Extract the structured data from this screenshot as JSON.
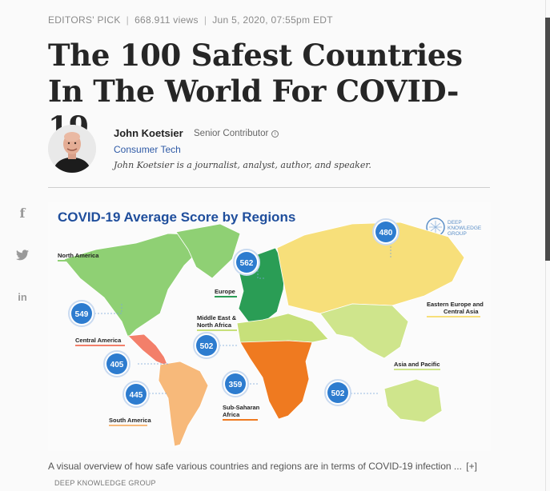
{
  "meta": {
    "label": "EDITORS' PICK",
    "views": "668.911 views",
    "date": "Jun 5, 2020, 07:55pm EDT"
  },
  "article": {
    "title": "The 100 Safest Countries In The World For COVID-19"
  },
  "author": {
    "name": "John Koetsier",
    "role": "Senior Contributor",
    "channel": "Consumer Tech",
    "bio": "John Koetsier is a journalist, analyst, author, and speaker."
  },
  "share": {
    "facebook_icon": "facebook-icon",
    "twitter_icon": "twitter-icon",
    "linkedin_icon": "linkedin-icon"
  },
  "figure": {
    "title": "COVID-19 Average Score by Regions",
    "logo_text_1": "DEEP",
    "logo_text_2": "KNOWLEDGE",
    "logo_text_3": "GROUP",
    "colors": {
      "title": "#1f4e9c",
      "north_america": "#8fd074",
      "europe": "#2a9d55",
      "eastern_europe": "#f7df7a",
      "asia_pacific": "#cfe58c",
      "central_america": "#f37f6a",
      "south_america": "#f7b97a",
      "mena": "#c7e07a",
      "sub_saharan": "#ef7a20",
      "badge": "#2d7ccf"
    }
  },
  "chart_data": {
    "type": "map",
    "title": "COVID-19 Average Score by Regions",
    "categories": [
      "North America",
      "Europe",
      "Eastern Europe and Central Asia",
      "Middle East & North Africa",
      "Central America",
      "South America",
      "Sub-Saharan Africa",
      "Asia and Pacific"
    ],
    "values": [
      549,
      562,
      480,
      502,
      405,
      445,
      359,
      502
    ]
  },
  "regions": {
    "north_america": {
      "label": "North America",
      "score": "549"
    },
    "europe": {
      "label": "Europe",
      "score": "562"
    },
    "eastern_europe_1": {
      "label": "Eastern Europe and"
    },
    "eastern_europe_2": {
      "label": "Central Asia",
      "score": "480"
    },
    "mena_1": {
      "label": "Middle East &"
    },
    "mena_2": {
      "label": "North Africa",
      "score": "502"
    },
    "central_america": {
      "label": "Central America",
      "score": "405"
    },
    "south_america": {
      "label": "South America",
      "score": "445"
    },
    "sub_saharan_1": {
      "label": "Sub-Saharan"
    },
    "sub_saharan_2": {
      "label": "Africa",
      "score": "359"
    },
    "asia_pacific": {
      "label": "Asia and Pacific",
      "score": "502"
    }
  },
  "caption": {
    "text": "A visual overview of how safe various countries and regions are in terms of COVID-19 infection ...",
    "more": "[+]",
    "credit": "DEEP KNOWLEDGE GROUP"
  }
}
